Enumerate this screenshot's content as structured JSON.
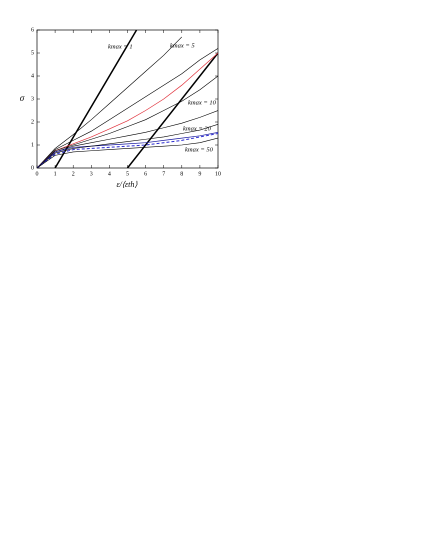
{
  "chart_data": {
    "type": "line",
    "xlabel": "ε/⟨εth⟩",
    "ylabel": "σ",
    "xlim": [
      0,
      10
    ],
    "ylim": [
      0,
      6
    ],
    "xticks": [
      0,
      1,
      2,
      3,
      4,
      5,
      6,
      7,
      8,
      9,
      10
    ],
    "yticks": [
      0,
      1,
      2,
      3,
      4,
      5,
      6
    ],
    "annotations": [
      "kmax = 1",
      "kmax = 5",
      "kmax = 10",
      "kmax = 20",
      "kmax = 50"
    ],
    "series": [
      {
        "color": "#000000",
        "linewidth": 1.5,
        "x": [
          1,
          5.5
        ],
        "values": [
          0,
          6
        ]
      },
      {
        "color": "#000000",
        "linewidth": 1.5,
        "x": [
          5,
          10
        ],
        "values": [
          0,
          5
        ]
      },
      {
        "color": "#000000",
        "linewidth": 0.6,
        "x": [
          0,
          1,
          2,
          3,
          4,
          5,
          6,
          7,
          8
        ],
        "values": [
          0,
          0.85,
          1.45,
          2.1,
          2.8,
          3.5,
          4.2,
          4.9,
          5.7
        ]
      },
      {
        "color": "#000000",
        "linewidth": 0.6,
        "x": [
          0,
          1,
          2,
          3,
          4,
          5,
          6,
          7,
          8,
          9,
          10
        ],
        "values": [
          0,
          0.8,
          1.2,
          1.6,
          2.1,
          2.6,
          3.1,
          3.6,
          4.1,
          4.7,
          5.2
        ]
      },
      {
        "color": "#e0303a",
        "linewidth": 0.7,
        "x": [
          0,
          1,
          2,
          3,
          4,
          5,
          6,
          7,
          8,
          9,
          10
        ],
        "values": [
          0,
          0.75,
          1.05,
          1.35,
          1.7,
          2.05,
          2.5,
          3.0,
          3.6,
          4.3,
          5.0
        ]
      },
      {
        "color": "#000000",
        "linewidth": 0.6,
        "x": [
          0,
          1,
          2,
          3,
          4,
          5,
          6,
          7,
          8,
          9,
          10
        ],
        "values": [
          0,
          0.75,
          1.0,
          1.25,
          1.5,
          1.8,
          2.1,
          2.5,
          2.9,
          3.4,
          4.0
        ]
      },
      {
        "color": "#000000",
        "linewidth": 0.6,
        "x": [
          0,
          1,
          2,
          3,
          4,
          5,
          6,
          7,
          8,
          9,
          10
        ],
        "values": [
          0,
          0.7,
          0.95,
          1.1,
          1.25,
          1.4,
          1.55,
          1.75,
          1.95,
          2.2,
          2.5
        ]
      },
      {
        "color": "#1a1aa0",
        "linewidth": 0.7,
        "x": [
          0,
          1,
          2,
          3,
          4,
          5,
          6,
          7,
          8,
          9,
          10
        ],
        "values": [
          0,
          0.7,
          0.9,
          0.95,
          1.0,
          1.05,
          1.1,
          1.2,
          1.3,
          1.4,
          1.55
        ]
      },
      {
        "color": "#000000",
        "linewidth": 0.6,
        "x": [
          0,
          1,
          2,
          3,
          4,
          5,
          6,
          7,
          8,
          9,
          10
        ],
        "values": [
          0,
          0.65,
          0.85,
          0.95,
          1.05,
          1.15,
          1.25,
          1.35,
          1.5,
          1.65,
          1.9
        ]
      },
      {
        "color": "#2a2ad0",
        "linewidth": 1.0,
        "dash": true,
        "x": [
          0,
          1,
          2,
          3,
          4,
          5,
          6,
          7,
          8,
          9,
          10
        ],
        "values": [
          0,
          0.6,
          0.8,
          0.85,
          0.9,
          0.95,
          1.0,
          1.1,
          1.2,
          1.35,
          1.5
        ]
      },
      {
        "color": "#000000",
        "linewidth": 0.6,
        "x": [
          0,
          1,
          2,
          3,
          4,
          5,
          6,
          7,
          8,
          9,
          10
        ],
        "values": [
          0,
          0.55,
          0.7,
          0.75,
          0.8,
          0.85,
          0.9,
          0.95,
          1.0,
          1.1,
          1.3
        ]
      }
    ]
  }
}
